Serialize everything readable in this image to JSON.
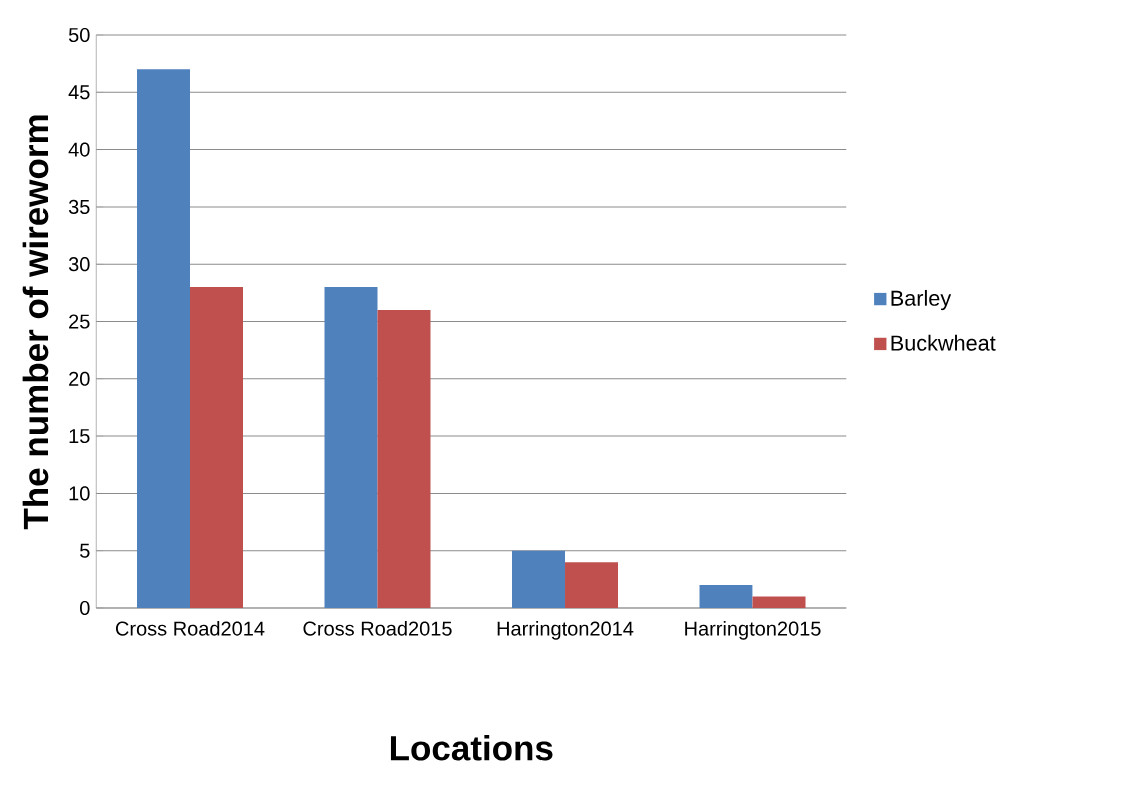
{
  "chart_data": {
    "type": "bar",
    "xlabel": "Locations",
    "ylabel": "The number of wireworm",
    "categories": [
      "Cross Road2014",
      "Cross Road2015",
      "Harrington2014",
      "Harrington2015"
    ],
    "series": [
      {
        "name": "Barley",
        "color": "#4f81bd",
        "values": [
          47,
          28,
          5,
          2
        ]
      },
      {
        "name": "Buckwheat",
        "color": "#c0504d",
        "values": [
          28,
          26,
          4,
          1
        ]
      }
    ],
    "ylim": [
      0,
      50
    ],
    "yticks": [
      0,
      5,
      10,
      15,
      20,
      25,
      30,
      35,
      40,
      45,
      50
    ],
    "grid": "y",
    "legend": "right"
  }
}
